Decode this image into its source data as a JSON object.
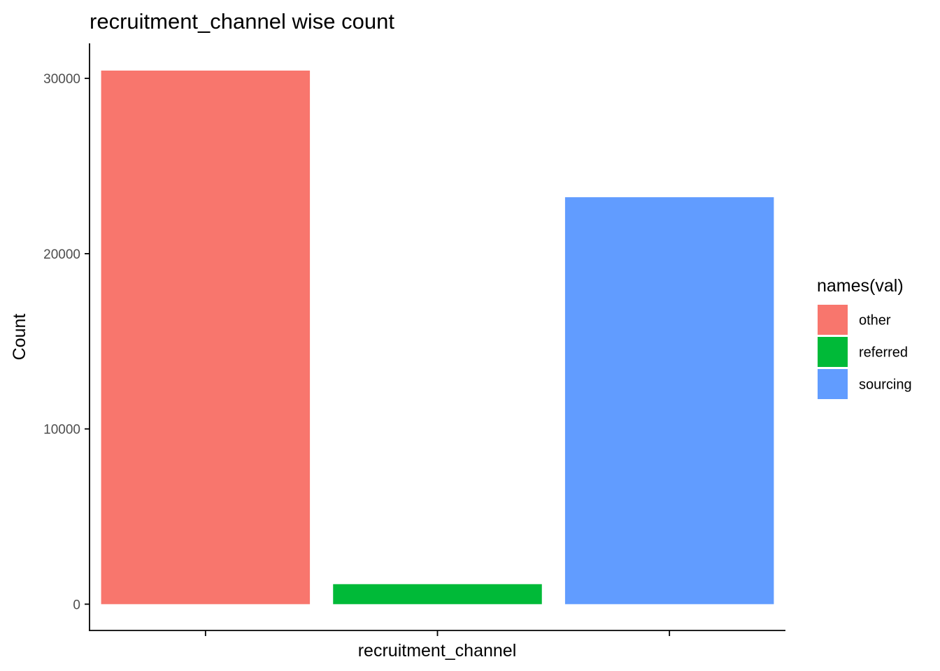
{
  "chart_data": {
    "type": "bar",
    "title": "recruitment_channel wise count",
    "xlabel": "recruitment_channel",
    "ylabel": "Count",
    "categories": [
      "other",
      "referred",
      "sourcing"
    ],
    "values": [
      30446,
      1142,
      23220
    ],
    "ylim": [
      -1500,
      32000
    ],
    "yticks": [
      0,
      10000,
      20000,
      30000
    ],
    "ytick_labels": [
      "0",
      "10000",
      "20000",
      "30000"
    ],
    "x_tick_labels_shown": false,
    "grid": false,
    "legend": {
      "title": "names(val)",
      "position": "right",
      "entries": [
        {
          "label": "other",
          "color": "#F8766D"
        },
        {
          "label": "referred",
          "color": "#00BA38"
        },
        {
          "label": "sourcing",
          "color": "#619CFF"
        }
      ]
    },
    "colors": [
      "#F8766D",
      "#00BA38",
      "#619CFF"
    ]
  }
}
